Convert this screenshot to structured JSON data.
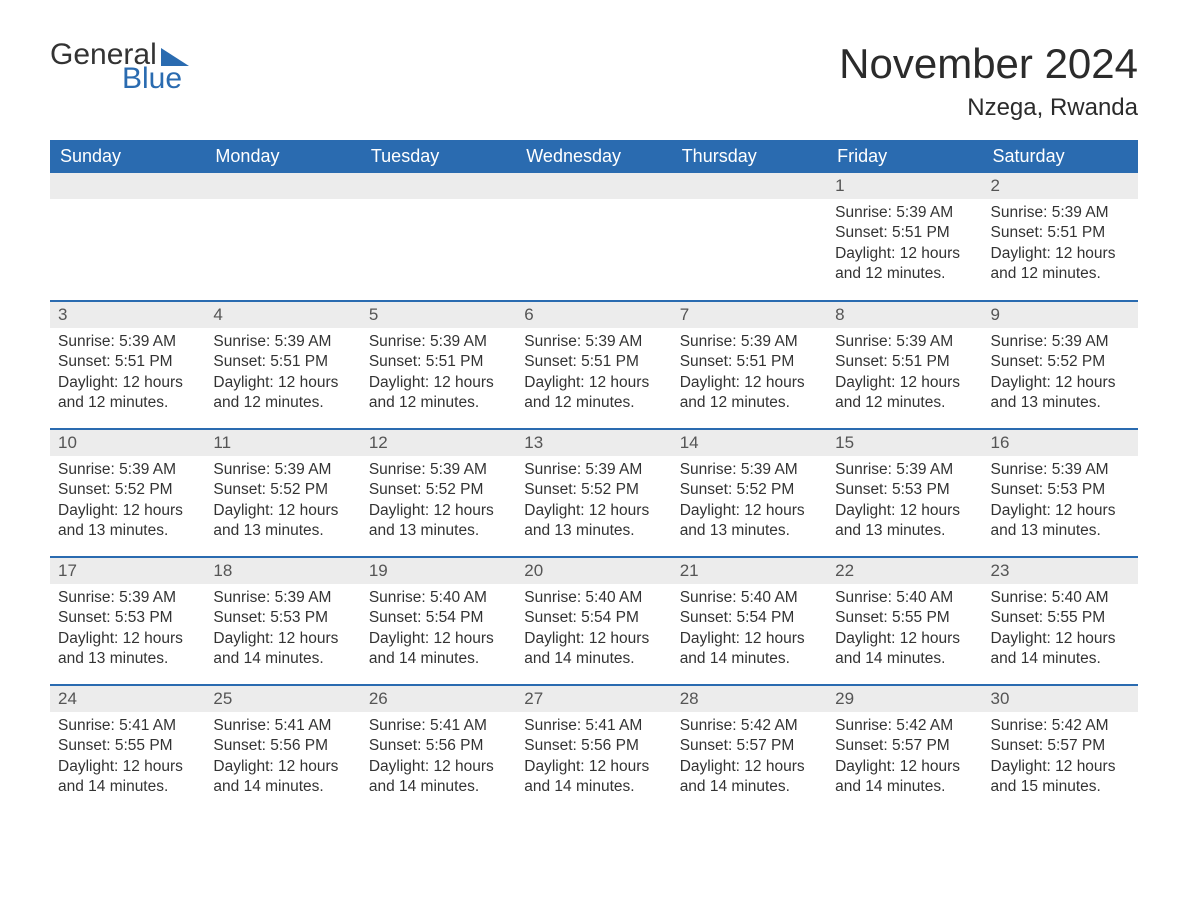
{
  "logo": {
    "text1": "General",
    "text2": "Blue",
    "brand_color": "#2a6bb0"
  },
  "title": "November 2024",
  "location": "Nzega, Rwanda",
  "colors": {
    "header_bg": "#2a6bb0",
    "header_text": "#ffffff",
    "daybar_bg": "#ececec",
    "row_divider": "#2a6bb0",
    "text": "#333333",
    "background": "#ffffff"
  },
  "typography": {
    "title_fontsize": 42,
    "location_fontsize": 24,
    "header_fontsize": 18,
    "daynum_fontsize": 17,
    "body_fontsize": 15.5
  },
  "weekdays": [
    "Sunday",
    "Monday",
    "Tuesday",
    "Wednesday",
    "Thursday",
    "Friday",
    "Saturday"
  ],
  "template": {
    "sunrise_prefix": "Sunrise: ",
    "sunset_prefix": "Sunset: ",
    "daylight_prefix": "Daylight: ",
    "daylight_mid": " hours and ",
    "daylight_suffix": " minutes."
  },
  "weeks": [
    [
      null,
      null,
      null,
      null,
      null,
      {
        "n": 1,
        "sunrise": "5:39 AM",
        "sunset": "5:51 PM",
        "dh": 12,
        "dm": 12
      },
      {
        "n": 2,
        "sunrise": "5:39 AM",
        "sunset": "5:51 PM",
        "dh": 12,
        "dm": 12
      }
    ],
    [
      {
        "n": 3,
        "sunrise": "5:39 AM",
        "sunset": "5:51 PM",
        "dh": 12,
        "dm": 12
      },
      {
        "n": 4,
        "sunrise": "5:39 AM",
        "sunset": "5:51 PM",
        "dh": 12,
        "dm": 12
      },
      {
        "n": 5,
        "sunrise": "5:39 AM",
        "sunset": "5:51 PM",
        "dh": 12,
        "dm": 12
      },
      {
        "n": 6,
        "sunrise": "5:39 AM",
        "sunset": "5:51 PM",
        "dh": 12,
        "dm": 12
      },
      {
        "n": 7,
        "sunrise": "5:39 AM",
        "sunset": "5:51 PM",
        "dh": 12,
        "dm": 12
      },
      {
        "n": 8,
        "sunrise": "5:39 AM",
        "sunset": "5:51 PM",
        "dh": 12,
        "dm": 12
      },
      {
        "n": 9,
        "sunrise": "5:39 AM",
        "sunset": "5:52 PM",
        "dh": 12,
        "dm": 13
      }
    ],
    [
      {
        "n": 10,
        "sunrise": "5:39 AM",
        "sunset": "5:52 PM",
        "dh": 12,
        "dm": 13
      },
      {
        "n": 11,
        "sunrise": "5:39 AM",
        "sunset": "5:52 PM",
        "dh": 12,
        "dm": 13
      },
      {
        "n": 12,
        "sunrise": "5:39 AM",
        "sunset": "5:52 PM",
        "dh": 12,
        "dm": 13
      },
      {
        "n": 13,
        "sunrise": "5:39 AM",
        "sunset": "5:52 PM",
        "dh": 12,
        "dm": 13
      },
      {
        "n": 14,
        "sunrise": "5:39 AM",
        "sunset": "5:52 PM",
        "dh": 12,
        "dm": 13
      },
      {
        "n": 15,
        "sunrise": "5:39 AM",
        "sunset": "5:53 PM",
        "dh": 12,
        "dm": 13
      },
      {
        "n": 16,
        "sunrise": "5:39 AM",
        "sunset": "5:53 PM",
        "dh": 12,
        "dm": 13
      }
    ],
    [
      {
        "n": 17,
        "sunrise": "5:39 AM",
        "sunset": "5:53 PM",
        "dh": 12,
        "dm": 13
      },
      {
        "n": 18,
        "sunrise": "5:39 AM",
        "sunset": "5:53 PM",
        "dh": 12,
        "dm": 14
      },
      {
        "n": 19,
        "sunrise": "5:40 AM",
        "sunset": "5:54 PM",
        "dh": 12,
        "dm": 14
      },
      {
        "n": 20,
        "sunrise": "5:40 AM",
        "sunset": "5:54 PM",
        "dh": 12,
        "dm": 14
      },
      {
        "n": 21,
        "sunrise": "5:40 AM",
        "sunset": "5:54 PM",
        "dh": 12,
        "dm": 14
      },
      {
        "n": 22,
        "sunrise": "5:40 AM",
        "sunset": "5:55 PM",
        "dh": 12,
        "dm": 14
      },
      {
        "n": 23,
        "sunrise": "5:40 AM",
        "sunset": "5:55 PM",
        "dh": 12,
        "dm": 14
      }
    ],
    [
      {
        "n": 24,
        "sunrise": "5:41 AM",
        "sunset": "5:55 PM",
        "dh": 12,
        "dm": 14
      },
      {
        "n": 25,
        "sunrise": "5:41 AM",
        "sunset": "5:56 PM",
        "dh": 12,
        "dm": 14
      },
      {
        "n": 26,
        "sunrise": "5:41 AM",
        "sunset": "5:56 PM",
        "dh": 12,
        "dm": 14
      },
      {
        "n": 27,
        "sunrise": "5:41 AM",
        "sunset": "5:56 PM",
        "dh": 12,
        "dm": 14
      },
      {
        "n": 28,
        "sunrise": "5:42 AM",
        "sunset": "5:57 PM",
        "dh": 12,
        "dm": 14
      },
      {
        "n": 29,
        "sunrise": "5:42 AM",
        "sunset": "5:57 PM",
        "dh": 12,
        "dm": 14
      },
      {
        "n": 30,
        "sunrise": "5:42 AM",
        "sunset": "5:57 PM",
        "dh": 12,
        "dm": 15
      }
    ]
  ]
}
